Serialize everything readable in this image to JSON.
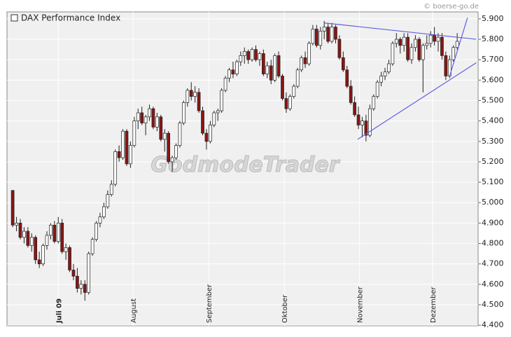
{
  "chart_data": {
    "type": "candlestick",
    "title": "DAX Performance Index",
    "source": "© boerse-go.de",
    "watermark": "GodmodeTrader",
    "up_color": "#ffffff",
    "down_color": "#8b1414",
    "line_color": "#6060e0",
    "grid": true,
    "xlim": [
      -1.5,
      122.5
    ],
    "ylim": [
      4397,
      5934
    ],
    "xticks": [
      {
        "value": 12,
        "label": "Juli 09"
      },
      {
        "value": 31.7,
        "label": "August"
      },
      {
        "value": 51.6,
        "label": "September"
      },
      {
        "value": 71.5,
        "label": "Oktober"
      },
      {
        "value": 91.3,
        "label": "November"
      },
      {
        "value": 110.5,
        "label": "Dezember"
      }
    ],
    "yticks": [
      {
        "value": 4400,
        "label": "4.400"
      },
      {
        "value": 4500,
        "label": "4.500"
      },
      {
        "value": 4600,
        "label": "4.600"
      },
      {
        "value": 4700,
        "label": "4.700"
      },
      {
        "value": 4800,
        "label": "4.800"
      },
      {
        "value": 4900,
        "label": "4.900"
      },
      {
        "value": 5000,
        "label": "5.000"
      },
      {
        "value": 5100,
        "label": "5.100"
      },
      {
        "value": 5200,
        "label": "5.200"
      },
      {
        "value": 5300,
        "label": "5.300"
      },
      {
        "value": 5400,
        "label": "5.400"
      },
      {
        "value": 5500,
        "label": "5.500"
      },
      {
        "value": 5600,
        "label": "5.600"
      },
      {
        "value": 5700,
        "label": "5.700"
      },
      {
        "value": 5800,
        "label": "5.800"
      },
      {
        "value": 5900,
        "label": "5.900"
      }
    ],
    "ohlc": [
      [
        5060,
        5060,
        4880,
        4890
      ],
      [
        4890,
        4930,
        4860,
        4900
      ],
      [
        4900,
        4920,
        4820,
        4830
      ],
      [
        4830,
        4880,
        4800,
        4860
      ],
      [
        4860,
        4880,
        4780,
        4790
      ],
      [
        4790,
        4850,
        4760,
        4830
      ],
      [
        4830,
        4840,
        4700,
        4720
      ],
      [
        4720,
        4760,
        4680,
        4700
      ],
      [
        4700,
        4800,
        4690,
        4790
      ],
      [
        4790,
        4860,
        4770,
        4840
      ],
      [
        4840,
        4900,
        4820,
        4890
      ],
      [
        4890,
        4910,
        4800,
        4810
      ],
      [
        4810,
        4930,
        4800,
        4900
      ],
      [
        4900,
        4920,
        4750,
        4760
      ],
      [
        4760,
        4800,
        4720,
        4780
      ],
      [
        4780,
        4790,
        4660,
        4670
      ],
      [
        4670,
        4700,
        4620,
        4640
      ],
      [
        4640,
        4680,
        4560,
        4580
      ],
      [
        4580,
        4620,
        4550,
        4600
      ],
      [
        4600,
        4620,
        4520,
        4560
      ],
      [
        4560,
        4760,
        4550,
        4750
      ],
      [
        4750,
        4830,
        4740,
        4820
      ],
      [
        4820,
        4910,
        4810,
        4900
      ],
      [
        4900,
        4950,
        4880,
        4930
      ],
      [
        4930,
        5000,
        4920,
        4980
      ],
      [
        4980,
        5060,
        4970,
        5040
      ],
      [
        5040,
        5110,
        5030,
        5090
      ],
      [
        5090,
        5260,
        5080,
        5250
      ],
      [
        5250,
        5280,
        5200,
        5220
      ],
      [
        5220,
        5360,
        5210,
        5350
      ],
      [
        5350,
        5360,
        5180,
        5190
      ],
      [
        5190,
        5300,
        5170,
        5280
      ],
      [
        5280,
        5420,
        5270,
        5400
      ],
      [
        5400,
        5460,
        5360,
        5440
      ],
      [
        5440,
        5470,
        5380,
        5390
      ],
      [
        5390,
        5430,
        5330,
        5420
      ],
      [
        5420,
        5480,
        5400,
        5460
      ],
      [
        5460,
        5470,
        5360,
        5370
      ],
      [
        5370,
        5440,
        5350,
        5420
      ],
      [
        5420,
        5430,
        5300,
        5310
      ],
      [
        5310,
        5360,
        5250,
        5340
      ],
      [
        5340,
        5350,
        5190,
        5200
      ],
      [
        5200,
        5230,
        5150,
        5220
      ],
      [
        5220,
        5290,
        5210,
        5280
      ],
      [
        5280,
        5400,
        5270,
        5390
      ],
      [
        5390,
        5500,
        5380,
        5490
      ],
      [
        5490,
        5560,
        5470,
        5550
      ],
      [
        5550,
        5590,
        5500,
        5520
      ],
      [
        5520,
        5570,
        5490,
        5540
      ],
      [
        5540,
        5560,
        5440,
        5450
      ],
      [
        5450,
        5470,
        5330,
        5340
      ],
      [
        5340,
        5360,
        5260,
        5300
      ],
      [
        5300,
        5400,
        5290,
        5380
      ],
      [
        5380,
        5450,
        5370,
        5440
      ],
      [
        5440,
        5460,
        5400,
        5450
      ],
      [
        5450,
        5560,
        5440,
        5550
      ],
      [
        5550,
        5620,
        5540,
        5610
      ],
      [
        5610,
        5660,
        5590,
        5650
      ],
      [
        5650,
        5690,
        5610,
        5630
      ],
      [
        5630,
        5700,
        5620,
        5690
      ],
      [
        5690,
        5740,
        5670,
        5720
      ],
      [
        5720,
        5760,
        5680,
        5740
      ],
      [
        5740,
        5750,
        5680,
        5700
      ],
      [
        5700,
        5760,
        5690,
        5750
      ],
      [
        5750,
        5770,
        5690,
        5700
      ],
      [
        5700,
        5740,
        5670,
        5730
      ],
      [
        5730,
        5750,
        5620,
        5630
      ],
      [
        5630,
        5690,
        5610,
        5670
      ],
      [
        5670,
        5700,
        5580,
        5600
      ],
      [
        5600,
        5730,
        5590,
        5720
      ],
      [
        5720,
        5740,
        5610,
        5620
      ],
      [
        5620,
        5630,
        5500,
        5510
      ],
      [
        5510,
        5540,
        5440,
        5460
      ],
      [
        5460,
        5530,
        5450,
        5520
      ],
      [
        5520,
        5580,
        5510,
        5570
      ],
      [
        5570,
        5660,
        5560,
        5650
      ],
      [
        5650,
        5720,
        5640,
        5710
      ],
      [
        5710,
        5740,
        5660,
        5680
      ],
      [
        5680,
        5790,
        5670,
        5780
      ],
      [
        5780,
        5870,
        5770,
        5850
      ],
      [
        5850,
        5870,
        5760,
        5770
      ],
      [
        5770,
        5860,
        5750,
        5840
      ],
      [
        5840,
        5890,
        5800,
        5860
      ],
      [
        5860,
        5880,
        5780,
        5790
      ],
      [
        5790,
        5880,
        5780,
        5860
      ],
      [
        5860,
        5870,
        5780,
        5800
      ],
      [
        5800,
        5820,
        5700,
        5710
      ],
      [
        5710,
        5740,
        5640,
        5650
      ],
      [
        5650,
        5670,
        5560,
        5570
      ],
      [
        5570,
        5600,
        5480,
        5490
      ],
      [
        5490,
        5520,
        5420,
        5430
      ],
      [
        5430,
        5470,
        5360,
        5380
      ],
      [
        5380,
        5420,
        5320,
        5400
      ],
      [
        5400,
        5430,
        5300,
        5330
      ],
      [
        5330,
        5480,
        5320,
        5460
      ],
      [
        5460,
        5530,
        5450,
        5520
      ],
      [
        5520,
        5600,
        5510,
        5590
      ],
      [
        5590,
        5640,
        5570,
        5620
      ],
      [
        5620,
        5660,
        5600,
        5640
      ],
      [
        5640,
        5700,
        5630,
        5680
      ],
      [
        5680,
        5790,
        5670,
        5780
      ],
      [
        5780,
        5830,
        5760,
        5800
      ],
      [
        5800,
        5810,
        5730,
        5770
      ],
      [
        5770,
        5830,
        5740,
        5810
      ],
      [
        5810,
        5830,
        5690,
        5700
      ],
      [
        5700,
        5780,
        5680,
        5760
      ],
      [
        5760,
        5820,
        5740,
        5800
      ],
      [
        5800,
        5810,
        5690,
        5700
      ],
      [
        5700,
        5780,
        5540,
        5770
      ],
      [
        5770,
        5820,
        5750,
        5780
      ],
      [
        5780,
        5840,
        5760,
        5820
      ],
      [
        5820,
        5860,
        5770,
        5790
      ],
      [
        5790,
        5830,
        5740,
        5810
      ],
      [
        5810,
        5830,
        5700,
        5720
      ],
      [
        5720,
        5740,
        5600,
        5620
      ],
      [
        5620,
        5720,
        5610,
        5700
      ],
      [
        5700,
        5770,
        5690,
        5760
      ],
      [
        5760,
        5830,
        5750,
        5790
      ]
    ],
    "trendlines": [
      [
        82,
        5880,
        122,
        5800
      ],
      [
        90.8,
        5310,
        122,
        5685
      ],
      [
        115,
        5620,
        119.7,
        5905
      ]
    ]
  }
}
